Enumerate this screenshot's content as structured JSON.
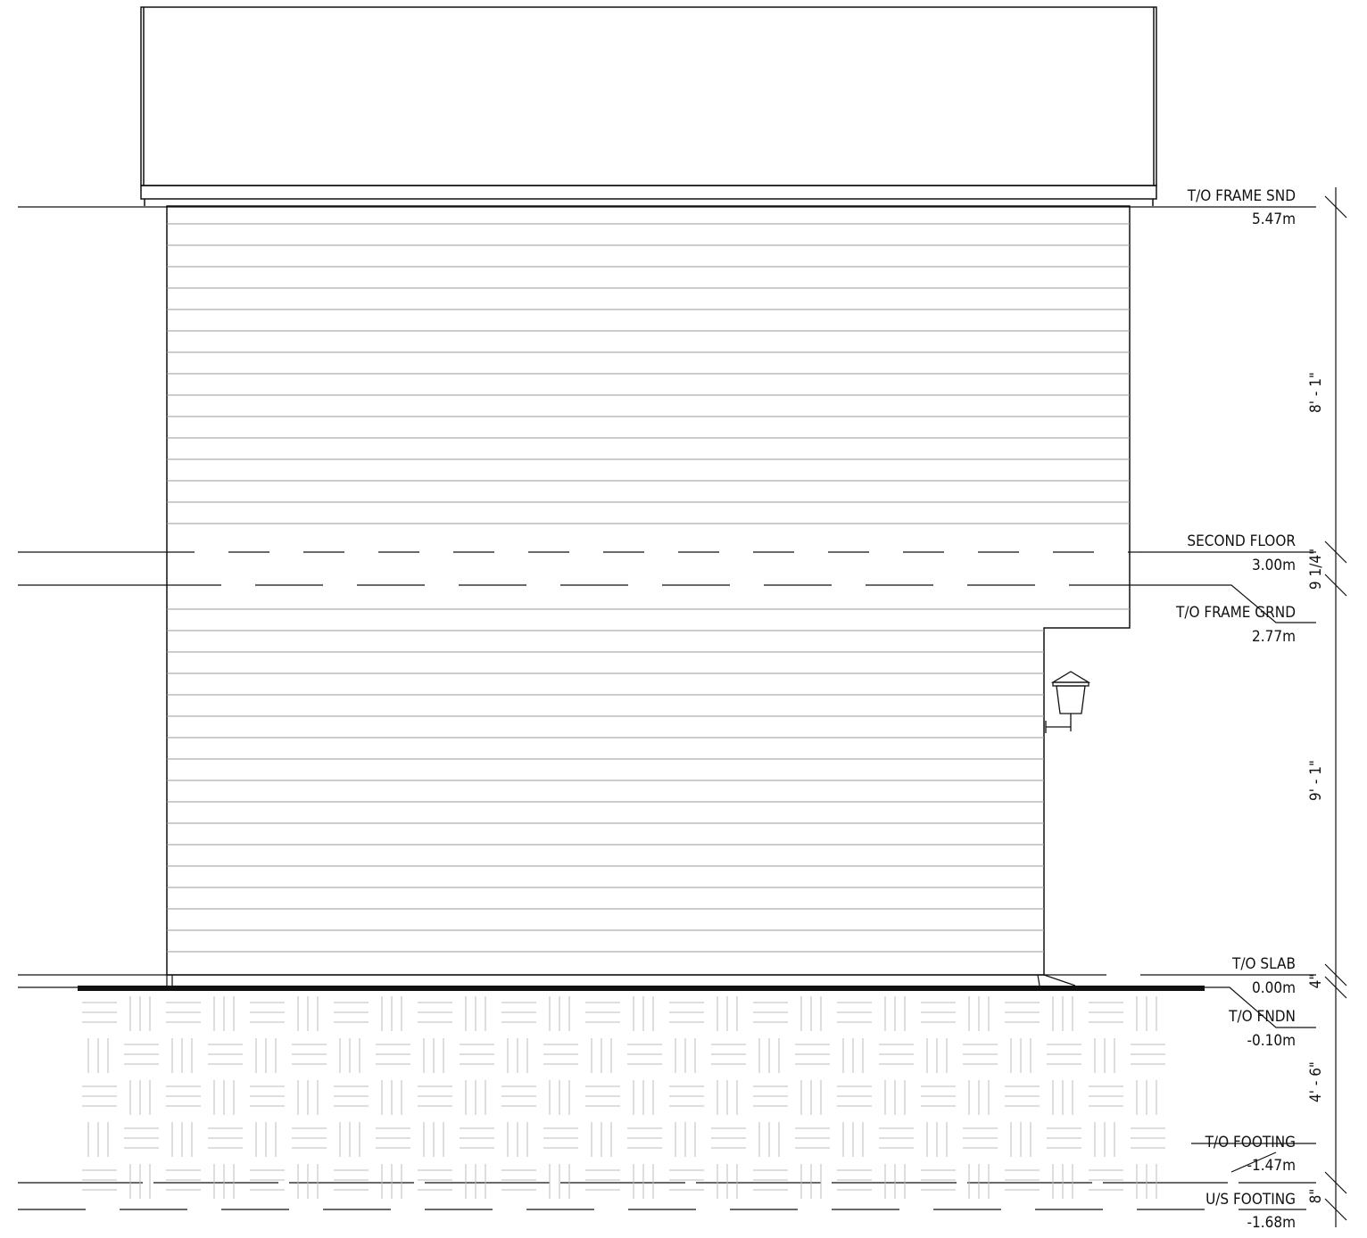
{
  "levels": [
    {
      "name": "T/O FRAME SND",
      "elevation": "5.47m"
    },
    {
      "name": "SECOND FLOOR",
      "elevation": "3.00m"
    },
    {
      "name": "T/O FRAME GRND",
      "elevation": "2.77m"
    },
    {
      "name": "T/O SLAB",
      "elevation": "0.00m"
    },
    {
      "name": "T/O FNDN",
      "elevation": "-0.10m"
    },
    {
      "name": "T/O FOOTING",
      "elevation": "-1.47m"
    },
    {
      "name": "U/S FOOTING",
      "elevation": "-1.68m"
    }
  ],
  "dimensions": [
    {
      "text": "8' - 1\""
    },
    {
      "text": "9 1/4\""
    },
    {
      "text": "9' - 1\""
    },
    {
      "text": "4\""
    },
    {
      "text": "4' - 6\""
    },
    {
      "text": "8\""
    }
  ],
  "colors": {
    "line": "#111111",
    "hatch": "#bdbdbd",
    "siding": "#9a9a9a"
  }
}
